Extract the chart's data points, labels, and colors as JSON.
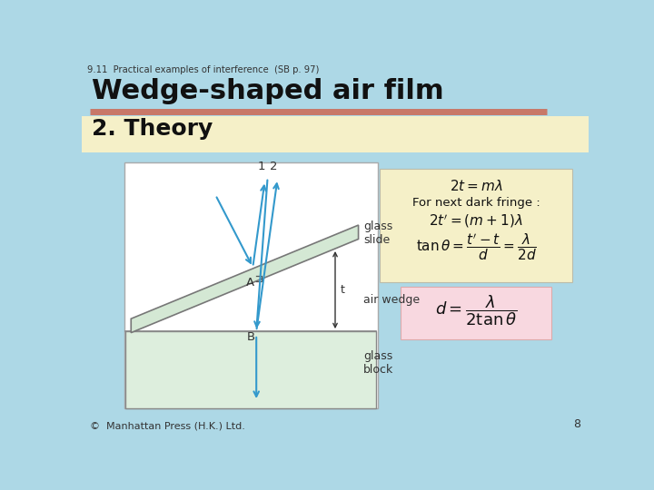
{
  "bg_color": "#add8e6",
  "title_small": "9.11  Practical examples of interference  (SB p. 97)",
  "title_main": "Wedge-shaped air film",
  "subtitle": "2. Theory",
  "subtitle_bg": "#f5f0c8",
  "footer": "©  Manhattan Press (H.K.) Ltd.",
  "page_num": "8",
  "header_line_color": "#c87868",
  "diagram_bg": "#ffffff",
  "glass_slide_color": "#d4e8d4",
  "glass_block_color": "#ddeedd",
  "ray_color": "#3399cc",
  "eq_box1_bg": "#f5f0c8",
  "eq_box2_bg": "#f8d8e0"
}
